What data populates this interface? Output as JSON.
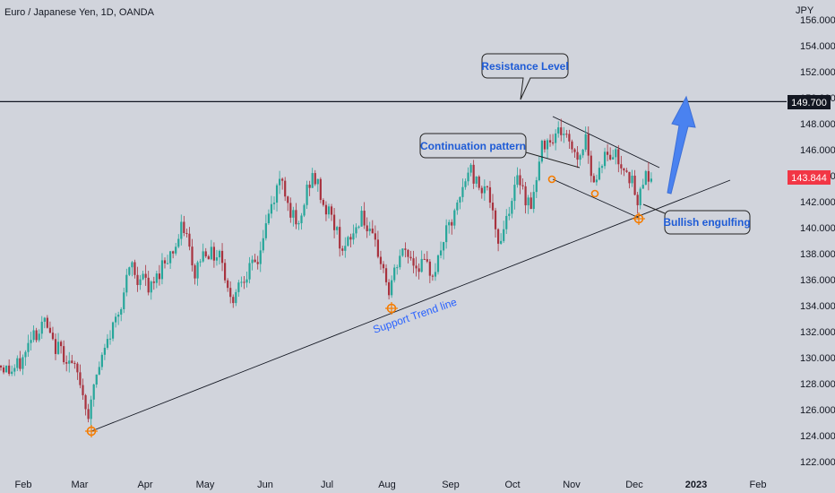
{
  "header": {
    "symbol_title": "Euro / Japanese Yen, 1D, OANDA"
  },
  "axis": {
    "currency": "JPY"
  },
  "badges": {
    "resistance_price": "149.700",
    "current_price": "143.844"
  },
  "annotations": {
    "resistance": "Resistance Level",
    "continuation": "Continuation pattern",
    "bullish": "Bullish engulfing",
    "support": "Support Trend line"
  },
  "colors": {
    "up": "#26a69a",
    "down": "#a8323e",
    "accent": "#2962ff",
    "marker": "#f57c00",
    "price_badge": "#f23645"
  },
  "chart_data": {
    "type": "candlestick",
    "instrument": "Euro / Japanese Yen",
    "timeframe": "1D",
    "source": "OANDA",
    "y_ticks": [
      122,
      124,
      126,
      128,
      130,
      132,
      134,
      136,
      138,
      140,
      142,
      144,
      146,
      148,
      150,
      152,
      154,
      156
    ],
    "ylim": [
      121,
      156.5
    ],
    "x_ticks": [
      "Feb",
      "Mar",
      "Apr",
      "May",
      "Jun",
      "Jul",
      "Aug",
      "Sep",
      "Oct",
      "Nov",
      "Dec",
      "2023",
      "Feb"
    ],
    "resistance_level": 149.7,
    "last_price": 143.844,
    "support_trendline": [
      {
        "date": "Mar",
        "price": 124.3
      },
      {
        "date": "Jan 2023",
        "price": 146.5
      }
    ],
    "channel_upper": [
      {
        "date": "late Oct",
        "price": 148.5
      },
      {
        "date": "mid Dec",
        "price": 144.8
      }
    ],
    "channel_lower": [
      {
        "date": "late Oct",
        "price": 143.8
      },
      {
        "date": "early Dec",
        "price": 141.0
      }
    ],
    "swing_points": [
      {
        "date": "early Mar",
        "price": 124.3
      },
      {
        "date": "early Aug",
        "price": 133.8
      },
      {
        "date": "late Oct",
        "price": 143.8
      },
      {
        "date": "mid Nov",
        "price": 142.6
      },
      {
        "date": "early Dec",
        "price": 140.7
      }
    ],
    "price_path": [
      [
        0,
        129.4
      ],
      [
        12,
        128.9
      ],
      [
        22,
        129.5
      ],
      [
        30,
        130.5
      ],
      [
        36,
        132.3
      ],
      [
        42,
        131.8
      ],
      [
        50,
        132.8
      ],
      [
        58,
        131.0
      ],
      [
        68,
        130.6
      ],
      [
        78,
        129.6
      ],
      [
        88,
        128.5
      ],
      [
        96,
        126.3
      ],
      [
        100,
        125.3
      ],
      [
        104,
        127.8
      ],
      [
        112,
        129.5
      ],
      [
        120,
        131.2
      ],
      [
        128,
        132.8
      ],
      [
        136,
        134.5
      ],
      [
        142,
        136.0
      ],
      [
        148,
        137.4
      ],
      [
        152,
        135.5
      ],
      [
        158,
        136.8
      ],
      [
        166,
        135.0
      ],
      [
        174,
        136.0
      ],
      [
        182,
        137.4
      ],
      [
        190,
        138.0
      ],
      [
        198,
        138.8
      ],
      [
        204,
        140.2
      ],
      [
        210,
        139.0
      ],
      [
        216,
        136.0
      ],
      [
        222,
        137.5
      ],
      [
        230,
        138.4
      ],
      [
        238,
        137.8
      ],
      [
        246,
        138.3
      ],
      [
        252,
        136.0
      ],
      [
        258,
        134.2
      ],
      [
        264,
        135.5
      ],
      [
        272,
        136.4
      ],
      [
        280,
        136.8
      ],
      [
        288,
        137.5
      ],
      [
        294,
        139.4
      ],
      [
        300,
        141.0
      ],
      [
        306,
        142.3
      ],
      [
        312,
        143.6
      ],
      [
        316,
        144.0
      ],
      [
        320,
        142.0
      ],
      [
        326,
        141.1
      ],
      [
        332,
        139.5
      ],
      [
        338,
        141.3
      ],
      [
        344,
        143.4
      ],
      [
        350,
        143.9
      ],
      [
        356,
        143.0
      ],
      [
        362,
        141.5
      ],
      [
        368,
        141.2
      ],
      [
        374,
        140.0
      ],
      [
        380,
        138.8
      ],
      [
        386,
        138.3
      ],
      [
        392,
        139.3
      ],
      [
        398,
        140.0
      ],
      [
        404,
        141.4
      ],
      [
        410,
        139.6
      ],
      [
        416,
        138.9
      ],
      [
        422,
        138.1
      ],
      [
        428,
        136.8
      ],
      [
        434,
        135.0
      ],
      [
        440,
        136.4
      ],
      [
        446,
        137.8
      ],
      [
        452,
        138.2
      ],
      [
        458,
        137.8
      ],
      [
        464,
        137.0
      ],
      [
        470,
        137.3
      ],
      [
        476,
        136.9
      ],
      [
        482,
        136.6
      ],
      [
        488,
        137.1
      ],
      [
        494,
        139.0
      ],
      [
        500,
        139.8
      ],
      [
        506,
        140.6
      ],
      [
        512,
        141.9
      ],
      [
        518,
        143.2
      ],
      [
        524,
        144.8
      ],
      [
        530,
        143.6
      ],
      [
        536,
        143.2
      ],
      [
        542,
        143.5
      ],
      [
        548,
        141.8
      ],
      [
        552,
        139.6
      ],
      [
        556,
        138.8
      ],
      [
        562,
        140.0
      ],
      [
        568,
        141.6
      ],
      [
        574,
        142.8
      ],
      [
        580,
        144.0
      ],
      [
        586,
        142.4
      ],
      [
        592,
        141.8
      ],
      [
        598,
        143.1
      ],
      [
        604,
        146.0
      ],
      [
        610,
        147.0
      ],
      [
        616,
        146.9
      ],
      [
        622,
        147.4
      ],
      [
        628,
        147.5
      ],
      [
        634,
        146.7
      ],
      [
        640,
        146.1
      ],
      [
        646,
        145.2
      ],
      [
        652,
        146.8
      ],
      [
        656,
        146.5
      ],
      [
        660,
        144.4
      ],
      [
        664,
        143.3
      ],
      [
        668,
        144.4
      ],
      [
        674,
        145.6
      ],
      [
        680,
        145.3
      ],
      [
        686,
        145.9
      ],
      [
        692,
        144.8
      ],
      [
        698,
        144.9
      ],
      [
        704,
        143.7
      ],
      [
        708,
        142.9
      ],
      [
        712,
        141.2
      ],
      [
        716,
        143.8
      ],
      [
        720,
        144.0
      ],
      [
        724,
        144.1
      ],
      [
        728,
        143.8
      ]
    ]
  }
}
